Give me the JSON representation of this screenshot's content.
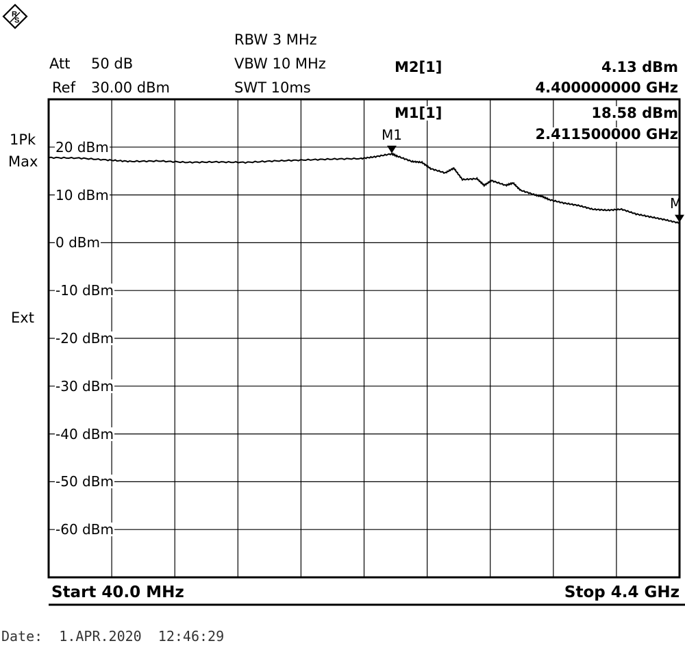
{
  "header": {
    "att_label": "Att",
    "att_value": "50 dB",
    "ref_label": "Ref",
    "ref_value": "30.00 dBm",
    "rbw": "RBW 3 MHz",
    "vbw": "VBW 10 MHz",
    "swt": "SWT 10ms"
  },
  "markers": {
    "m2": {
      "label": "M2[1]",
      "level": "4.13 dBm",
      "freq": "4.400000000 GHz"
    },
    "m1": {
      "label": "M1[1]",
      "level": "18.58 dBm",
      "freq": "2.411500000 GHz"
    },
    "m1_tag": "M1",
    "m2_tag": "M"
  },
  "side": {
    "trace_mode_1": "1Pk",
    "trace_mode_2": "Max",
    "ext": "Ext"
  },
  "footer": {
    "start": "Start 40.0 MHz",
    "stop": "Stop 4.4 GHz",
    "date": "Date:  1.APR.2020  12:46:29"
  },
  "chart_data": {
    "type": "line",
    "xlabel": "",
    "ylabel": "",
    "xlim": [
      0.04,
      4.4
    ],
    "ylim": [
      -70,
      30
    ],
    "y_tick_labels": [
      "20 dBm",
      "10 dBm",
      "0 dBm",
      "-10 dBm",
      "-20 dBm",
      "-30 dBm",
      "-40 dBm",
      "-50 dBm",
      "-60 dBm"
    ],
    "y_tick_values": [
      20,
      10,
      0,
      -10,
      -20,
      -30,
      -40,
      -50,
      -60
    ],
    "grid": true,
    "series": [
      {
        "x": [
          0.04,
          0.25,
          0.45,
          0.6,
          0.8,
          1.0,
          1.2,
          1.4,
          1.6,
          1.8,
          2.0,
          2.2,
          2.3,
          2.411,
          2.45,
          2.55,
          2.62,
          2.68,
          2.78,
          2.84,
          2.9,
          3.0,
          3.05,
          3.1,
          3.2,
          3.25,
          3.3,
          3.4,
          3.45,
          3.5,
          3.6,
          3.7,
          3.8,
          3.9,
          4.0,
          4.1,
          4.2,
          4.3,
          4.4
        ],
        "values": [
          17.8,
          17.7,
          17.3,
          17.0,
          17.1,
          16.8,
          16.9,
          16.8,
          17.1,
          17.3,
          17.5,
          17.6,
          18.0,
          18.6,
          18.1,
          17.0,
          16.8,
          15.5,
          14.6,
          15.6,
          13.2,
          13.4,
          12.0,
          13.0,
          12.0,
          12.5,
          11.0,
          10.0,
          9.7,
          9.0,
          8.3,
          7.8,
          7.0,
          6.8,
          7.0,
          6.0,
          5.4,
          4.8,
          4.1
        ]
      }
    ],
    "markers": [
      {
        "name": "M1",
        "x": 2.4115,
        "y": 18.58
      },
      {
        "name": "M2",
        "x": 4.4,
        "y": 4.13
      }
    ]
  }
}
